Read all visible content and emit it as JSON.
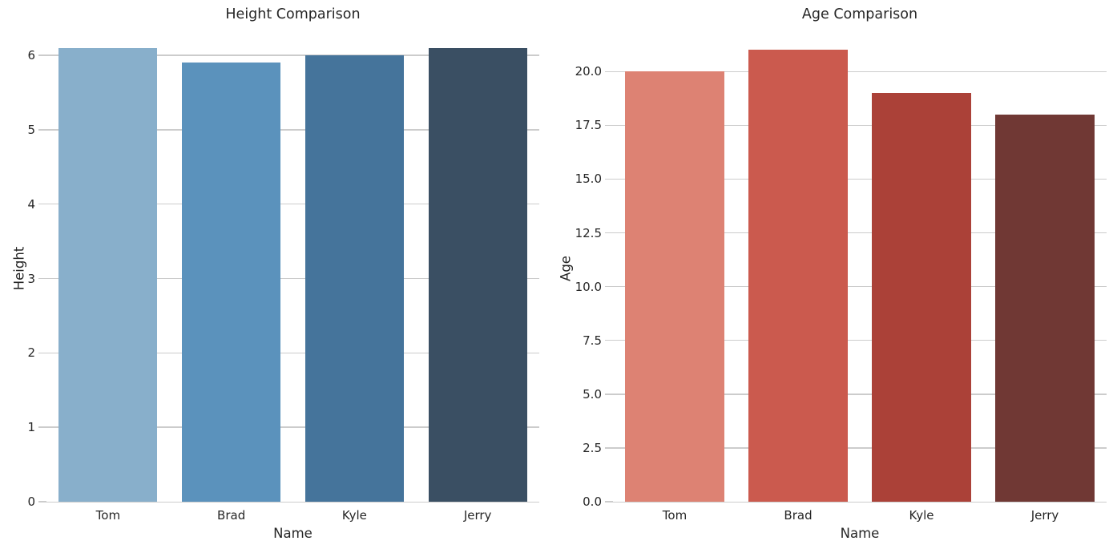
{
  "figure": {
    "background": "#ffffff",
    "text_color": "#262626",
    "grid_color": "#cccccc"
  },
  "chart_data": [
    {
      "type": "bar",
      "title": "Height Comparison",
      "xlabel": "Name",
      "ylabel": "Height",
      "categories": [
        "Tom",
        "Brad",
        "Kyle",
        "Jerry"
      ],
      "values": [
        6.1,
        5.9,
        6.0,
        6.1
      ],
      "bar_colors": [
        "#88afcb",
        "#5b92bc",
        "#45749b",
        "#3a4f63"
      ],
      "yticks": [
        0,
        1,
        2,
        3,
        4,
        5,
        6
      ],
      "ytick_labels": [
        "0",
        "1",
        "2",
        "3",
        "4",
        "5",
        "6"
      ],
      "ylim": [
        0,
        6.26
      ],
      "grid": true,
      "legend": null,
      "palette": "blues-dark"
    },
    {
      "type": "bar",
      "title": "Age Comparison",
      "xlabel": "Name",
      "ylabel": "Age",
      "categories": [
        "Tom",
        "Brad",
        "Kyle",
        "Jerry"
      ],
      "values": [
        20,
        21,
        19,
        18
      ],
      "bar_colors": [
        "#dd8273",
        "#cb5a4e",
        "#ab4138",
        "#703834"
      ],
      "yticks": [
        0,
        2.5,
        5,
        7.5,
        10,
        12.5,
        15,
        17.5,
        20
      ],
      "ytick_labels": [
        "0.0",
        "2.5",
        "5.0",
        "7.5",
        "10.0",
        "12.5",
        "15.0",
        "17.5",
        "20.0"
      ],
      "ylim": [
        0,
        21.65
      ],
      "grid": true,
      "legend": null,
      "palette": "reds-dark"
    }
  ]
}
